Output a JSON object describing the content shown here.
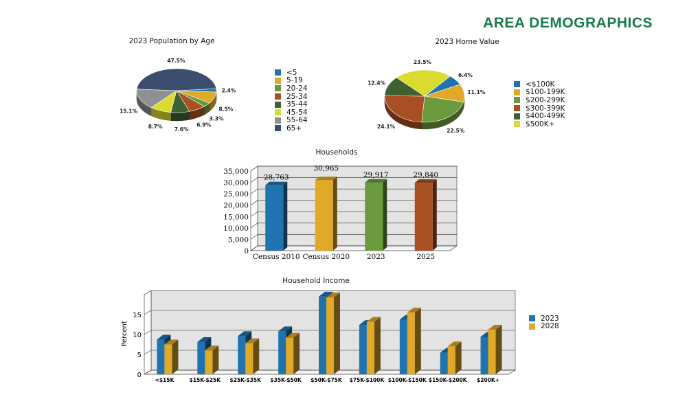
{
  "header": {
    "title": "AREA DEMOGRAPHICS",
    "title_color": "#1a7a4a"
  },
  "colors": {
    "blue": "#1f74b0",
    "gold": "#e0a928",
    "green": "#6a9a3c",
    "rust": "#a94f24",
    "darkgreen": "#3d6130",
    "yellow": "#d9dc2e",
    "gray": "#8e9093",
    "navy": "#3c4e6d"
  },
  "chart_data": [
    {
      "id": "population-age",
      "type": "pie",
      "title": "2023 Population by Age",
      "categories": [
        "<5",
        "5-19",
        "20-24",
        "25-34",
        "35-44",
        "45-54",
        "55-64",
        "65+"
      ],
      "values": [
        2.4,
        8.5,
        3.3,
        6.9,
        7.6,
        8.7,
        15.1,
        47.5
      ],
      "labels": [
        "2.4%",
        "8.5%",
        "3.3%",
        "6.9%",
        "7.6%",
        "8.7%",
        "15.1%",
        "47.5%"
      ],
      "colors": [
        "#1f74b0",
        "#e0a928",
        "#6a9a3c",
        "#a94f24",
        "#3d6130",
        "#d9dc2e",
        "#8e9093",
        "#3c4e6d"
      ]
    },
    {
      "id": "home-value",
      "type": "pie",
      "title": "2023 Home Value",
      "categories": [
        "<$100K",
        "$100-199K",
        "$200-299K",
        "$300-399K",
        "$400-499K",
        "$500K+"
      ],
      "values": [
        6.4,
        11.1,
        22.5,
        24.1,
        12.4,
        23.5
      ],
      "labels": [
        "6.4%",
        "11.1%",
        "22.5%",
        "24.1%",
        "12.4%",
        "23.5%"
      ],
      "colors": [
        "#1f74b0",
        "#e0a928",
        "#6a9a3c",
        "#a94f24",
        "#3d6130",
        "#d9dc2e"
      ]
    },
    {
      "id": "households",
      "type": "bar",
      "title": "Households",
      "categories": [
        "Census 2010",
        "Census 2020",
        "2023",
        "2025"
      ],
      "values": [
        28763,
        30965,
        29917,
        29840
      ],
      "value_labels": [
        "28,763",
        "30,965",
        "29,917",
        "29,840"
      ],
      "colors": [
        "#1f74b0",
        "#e0a928",
        "#6a9a3c",
        "#a94f24"
      ],
      "ylim": [
        0,
        35000
      ],
      "yticks": [
        "0",
        "5,000",
        "10,000",
        "15,000",
        "20,000",
        "25,000",
        "30,000",
        "35,000"
      ],
      "grid": true
    },
    {
      "id": "household-income",
      "type": "bar",
      "title": "Household Income",
      "ylabel": "Percent",
      "categories": [
        "<$15K",
        "$15K-$25K",
        "$25K-$35K",
        "$35K-$50K",
        "$50K-$75K",
        "$75K-$100K",
        "$100K-$150K",
        "$150K-$200K",
        "$200K+"
      ],
      "series": [
        {
          "name": "2023",
          "color": "#1f74b0",
          "values": [
            8.7,
            8.1,
            9.6,
            10.8,
            19.5,
            12.4,
            13.7,
            5.4,
            9.4
          ]
        },
        {
          "name": "2028",
          "color": "#e0a928",
          "values": [
            7.5,
            6.0,
            7.8,
            9.2,
            19.3,
            13.2,
            15.5,
            7.0,
            11.2
          ]
        }
      ],
      "ylim": [
        0,
        20
      ],
      "yticks": [
        "0",
        "5",
        "10",
        "15"
      ],
      "legend_position": "right",
      "grid": true
    }
  ]
}
